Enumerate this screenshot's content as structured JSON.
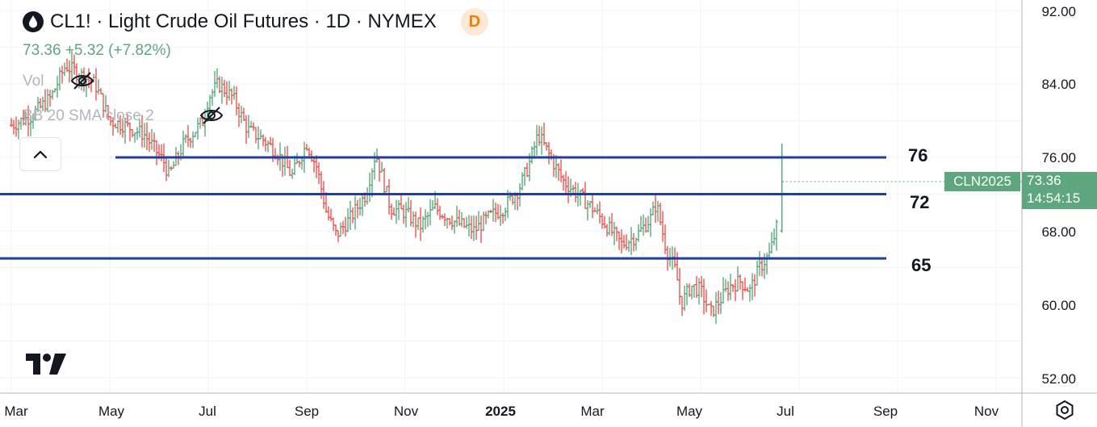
{
  "header": {
    "symbol_line": "CL1! · Light Crude Oil Futures · 1D · NYMEX",
    "badge": "D"
  },
  "price": {
    "summary": "73.36 +5.32 (+7.82%)"
  },
  "indicators": [
    {
      "label": "Vol"
    },
    {
      "label": "BB 20 SMA close 2"
    }
  ],
  "icons": {
    "logo": "oil-drop-icon",
    "visibility": "eye-slash-icon",
    "collapse": "chevron-up-icon",
    "brand": "tradingview-logo",
    "settings": "gear-icon"
  },
  "last_price_tag": {
    "symbol": "CLN2025",
    "price": "73.36",
    "countdown": "14:54:15"
  },
  "colors": {
    "up": "#5ea77e",
    "down": "#ef5350",
    "level_line": "#1f3f9e",
    "badge_text": "#f57c00",
    "badge_bg": "#fde9d6"
  },
  "chart_data": {
    "type": "ohlc",
    "title": "CL1! · Light Crude Oil Futures · 1D · NYMEX",
    "y_ticks": [
      "92.00",
      "84.00",
      "76.00",
      "68.00",
      "60.00",
      "52.00"
    ],
    "ylim": [
      51,
      93
    ],
    "x_ticks": [
      {
        "label": "Mar",
        "pos": 0
      },
      {
        "label": "May",
        "pos": 2
      },
      {
        "label": "Jul",
        "pos": 4
      },
      {
        "label": "Sep",
        "pos": 6
      },
      {
        "label": "Nov",
        "pos": 8
      },
      {
        "label": "2025",
        "pos": 10,
        "bold": true
      },
      {
        "label": "Mar",
        "pos": 12
      },
      {
        "label": "May",
        "pos": 14
      },
      {
        "label": "Jul",
        "pos": 16
      },
      {
        "label": "Sep",
        "pos": 18
      },
      {
        "label": "Nov",
        "pos": 20
      }
    ],
    "levels": [
      {
        "label": "76",
        "value": 76.0
      },
      {
        "label": "72",
        "value": 72.0
      },
      {
        "label": "65",
        "value": 65.0
      }
    ],
    "price_path": [
      [
        0.0,
        79.5
      ],
      [
        0.4,
        80.5
      ],
      [
        0.8,
        82.5
      ],
      [
        1.1,
        86.0
      ],
      [
        1.4,
        85.0
      ],
      [
        1.7,
        84.0
      ],
      [
        2.0,
        80.0
      ],
      [
        2.3,
        79.5
      ],
      [
        2.7,
        78.5
      ],
      [
        3.1,
        75.5
      ],
      [
        3.2,
        74.0
      ],
      [
        3.5,
        77.5
      ],
      [
        3.9,
        80.0
      ],
      [
        4.0,
        82.5
      ],
      [
        4.2,
        84.0
      ],
      [
        4.5,
        82.5
      ],
      [
        4.8,
        79.0
      ],
      [
        5.1,
        78.0
      ],
      [
        5.4,
        76.5
      ],
      [
        5.7,
        74.0
      ],
      [
        6.0,
        77.5
      ],
      [
        6.2,
        75.0
      ],
      [
        6.4,
        70.0
      ],
      [
        6.6,
        67.5
      ],
      [
        6.9,
        69.5
      ],
      [
        7.2,
        72.0
      ],
      [
        7.4,
        76.5
      ],
      [
        7.5,
        74.5
      ],
      [
        7.7,
        70.5
      ],
      [
        8.0,
        70.0
      ],
      [
        8.3,
        68.5
      ],
      [
        8.6,
        70.5
      ],
      [
        9.0,
        69.0
      ],
      [
        9.4,
        68.0
      ],
      [
        9.7,
        69.5
      ],
      [
        10.0,
        70.5
      ],
      [
        10.3,
        72.5
      ],
      [
        10.5,
        75.0
      ],
      [
        10.7,
        78.5
      ],
      [
        10.9,
        76.5
      ],
      [
        11.2,
        73.5
      ],
      [
        11.5,
        72.0
      ],
      [
        11.8,
        70.5
      ],
      [
        12.1,
        68.5
      ],
      [
        12.4,
        66.5
      ],
      [
        12.7,
        67.5
      ],
      [
        13.0,
        69.5
      ],
      [
        13.1,
        71.0
      ],
      [
        13.3,
        66.0
      ],
      [
        13.5,
        63.5
      ],
      [
        13.6,
        60.0
      ],
      [
        13.8,
        62.0
      ],
      [
        14.0,
        61.5
      ],
      [
        14.2,
        59.0
      ],
      [
        14.4,
        60.5
      ],
      [
        14.6,
        62.0
      ],
      [
        14.8,
        62.5
      ],
      [
        15.0,
        61.5
      ],
      [
        15.2,
        64.0
      ],
      [
        15.4,
        65.5
      ],
      [
        15.55,
        68.5
      ],
      [
        15.65,
        73.5
      ]
    ],
    "last": 73.36
  }
}
